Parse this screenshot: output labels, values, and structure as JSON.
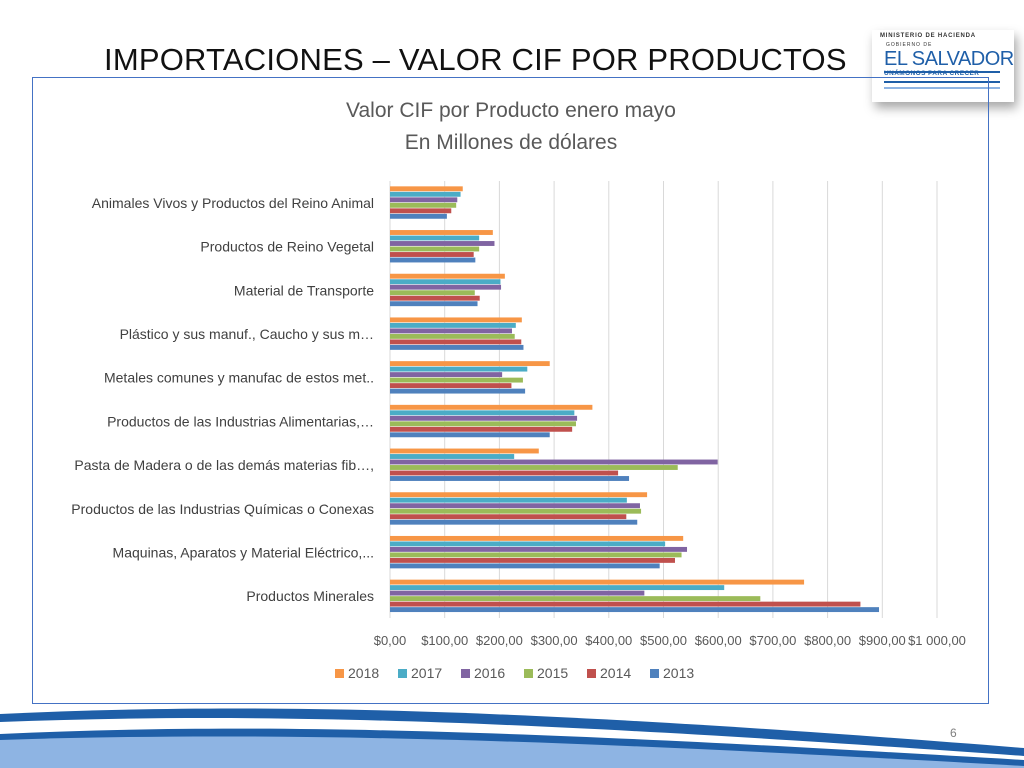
{
  "slide": {
    "title": "IMPORTACIONES – VALOR CIF POR PRODUCTOS",
    "page_number": "6"
  },
  "logo": {
    "ministry": "MINISTERIO DE HACIENDA",
    "government": "GOBIERNO DE",
    "country": "EL SALVADOR",
    "motto": "UNÁMONOS PARA CRECER"
  },
  "colors": {
    "2018": "#f79646",
    "2017": "#4bacc6",
    "2016": "#8064a2",
    "2015": "#9bbb59",
    "2014": "#c0504d",
    "2013": "#4f81bd",
    "frame": "#4472c4",
    "grid": "#d9d9d9"
  },
  "chart_data": {
    "type": "bar",
    "orientation": "horizontal",
    "title": "Valor CIF por Producto  enero mayo",
    "subtitle": "En Millones de dólares",
    "categories": [
      "Animales Vivos y Productos del Reino Animal",
      "Productos de Reino Vegetal",
      "Material de Transporte",
      "Plástico y sus manuf., Caucho y sus m…",
      "Metales comunes y manufac de estos met..",
      "Productos de las Industrias Alimentarias,…",
      "Pasta de Madera o de las demás materias fib…,",
      "Productos de las Industrias Químicas o Conexas",
      "Maquinas, Aparatos y Material Eléctrico,...",
      "Productos Minerales"
    ],
    "series": [
      {
        "name": "2018",
        "values": [
          133,
          188,
          210,
          241,
          292,
          370,
          272,
          470,
          536,
          757
        ]
      },
      {
        "name": "2017",
        "values": [
          129,
          163,
          202,
          230,
          251,
          337,
          227,
          433,
          503,
          611
        ]
      },
      {
        "name": "2016",
        "values": [
          123,
          191,
          203,
          223,
          205,
          342,
          599,
          457,
          543,
          465
        ]
      },
      {
        "name": "2015",
        "values": [
          121,
          163,
          155,
          228,
          243,
          340,
          526,
          459,
          533,
          677
        ]
      },
      {
        "name": "2014",
        "values": [
          112,
          153,
          164,
          240,
          222,
          333,
          417,
          432,
          521,
          860
        ]
      },
      {
        "name": "2013",
        "values": [
          104,
          156,
          160,
          244,
          247,
          292,
          437,
          452,
          493,
          894
        ]
      }
    ],
    "xlim": [
      0,
      1000
    ],
    "xticks": [
      "$0,00",
      "$100,00",
      "$200,00",
      "$300,00",
      "$400,00",
      "$500,00",
      "$600,00",
      "$700,00",
      "$800,00",
      "$900,00",
      "$1 000,00"
    ],
    "grid": true,
    "legend_position": "bottom"
  }
}
